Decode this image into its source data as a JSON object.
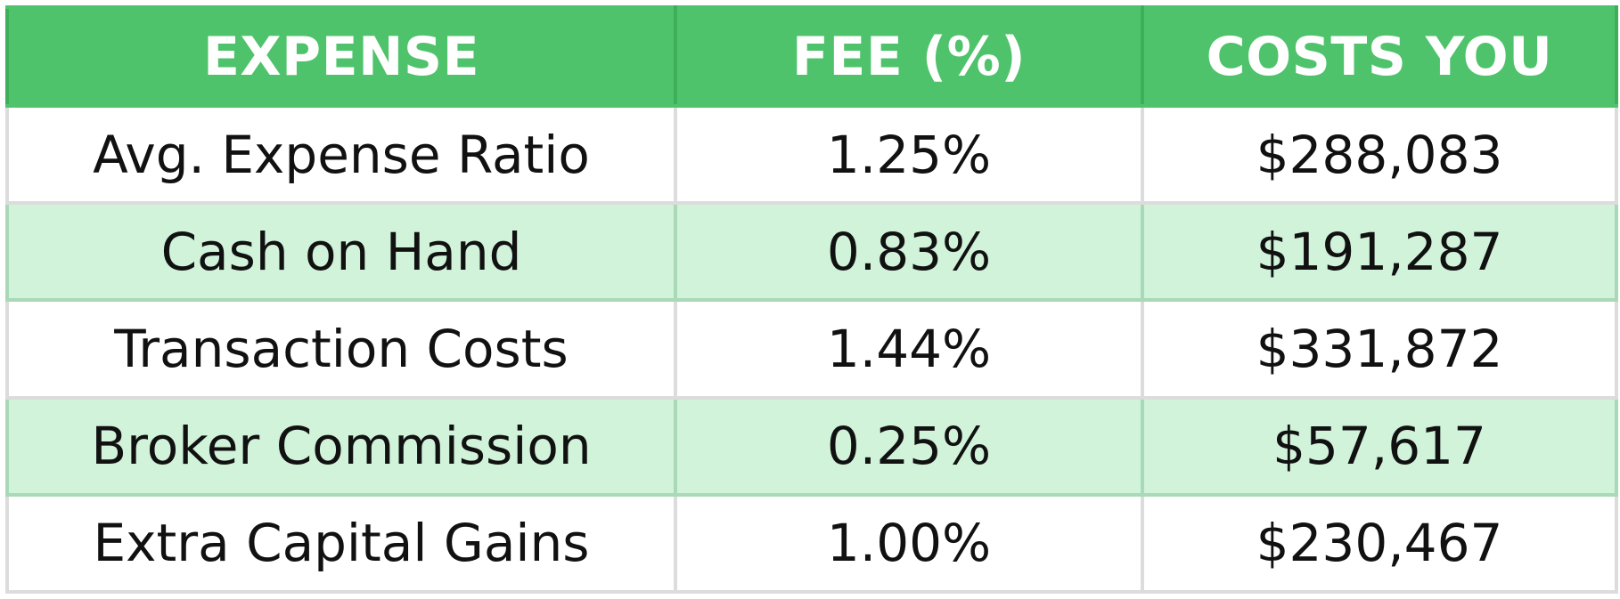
{
  "chart_data": {
    "type": "table",
    "columns": [
      "EXPENSE",
      "FEE (%)",
      "COSTS YOU"
    ],
    "rows": [
      {
        "expense": "Avg. Expense Ratio",
        "fee": "1.25%",
        "cost": "$288,083"
      },
      {
        "expense": "Cash on Hand",
        "fee": "0.83%",
        "cost": "$191,287"
      },
      {
        "expense": "Transaction Costs",
        "fee": "1.44%",
        "cost": "$331,872"
      },
      {
        "expense": "Broker Commission",
        "fee": "0.25%",
        "cost": "$57,617"
      },
      {
        "expense": "Extra Capital Gains",
        "fee": "1.00%",
        "cost": "$230,467"
      }
    ]
  },
  "colors": {
    "header_bg": "#4fc36b",
    "header_text": "#ffffff",
    "alt_row_bg": "#d0f3da",
    "row_bg": "#ffffff",
    "grid": "#dcdcdc"
  }
}
